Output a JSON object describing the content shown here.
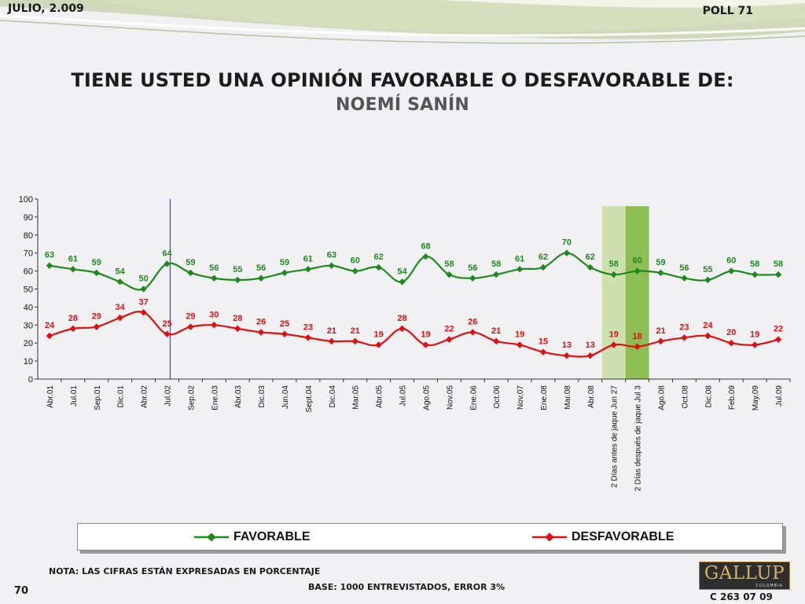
{
  "header": {
    "date": "JULIO, 2.009",
    "poll": "POLL 71",
    "title": "TIENE USTED UNA OPINIÓN FAVORABLE O DESFAVORABLE DE:",
    "subtitle": "NOEMÍ SANÍN"
  },
  "chart_data": {
    "type": "line",
    "categories": [
      "Abr.01",
      "Jul.01",
      "Sep.01",
      "Dic.01",
      "Abr.02",
      "Jul.02",
      "Sep.02",
      "Ene.03",
      "Abr.03",
      "Dic.03",
      "Jun.04",
      "Sept.04",
      "Dic.04",
      "Mar.05",
      "Abr.05",
      "Jul.05",
      "Ago.05",
      "Nov.05",
      "Ene.06",
      "Oct.06",
      "Nov.07",
      "Ene.08",
      "Mar.08",
      "Abr.08",
      "2 Días antes de jaque Jun 27",
      "2 Días después de jaque Jul 3",
      "Ago.08",
      "Oct.08",
      "Dic.08",
      "Feb.09",
      "May.09",
      "Jul.09"
    ],
    "series": [
      {
        "name": "FAVORABLE",
        "color": "#1e8a1e",
        "values": [
          63,
          61,
          59,
          54,
          50,
          64,
          59,
          56,
          55,
          56,
          59,
          61,
          63,
          60,
          62,
          54,
          68,
          58,
          56,
          58,
          61,
          62,
          70,
          62,
          58,
          60,
          59,
          56,
          55,
          60,
          58,
          58
        ]
      },
      {
        "name": "DESFAVORABLE",
        "color": "#e01010",
        "values": [
          24,
          28,
          29,
          34,
          37,
          25,
          29,
          30,
          28,
          26,
          25,
          23,
          21,
          21,
          19,
          28,
          19,
          22,
          26,
          21,
          19,
          15,
          13,
          13,
          19,
          18,
          21,
          23,
          24,
          20,
          19,
          22
        ]
      }
    ],
    "ylim": [
      0,
      100
    ],
    "yticks": [
      0,
      10,
      20,
      30,
      40,
      50,
      60,
      70,
      80,
      90,
      100
    ],
    "legend_position": "bottom",
    "highlight_categories": [
      "2 Días antes de jaque Jun 27",
      "2 Días después de jaque Jul 3"
    ],
    "divider_after_category": "Jul.02"
  },
  "legend": {
    "favorable": "FAVORABLE",
    "desfavorable": "DESFAVORABLE"
  },
  "footer": {
    "note": "NOTA: LAS CIFRAS ESTÁN EXPRESADAS EN PORCENTAJE",
    "base": "BASE: 1000 ENTREVISTADOS, ERROR 3%",
    "page": "70",
    "code": "C 263 07 09",
    "logo": "GALLUP",
    "logo_sub": "COLOMBIA"
  }
}
